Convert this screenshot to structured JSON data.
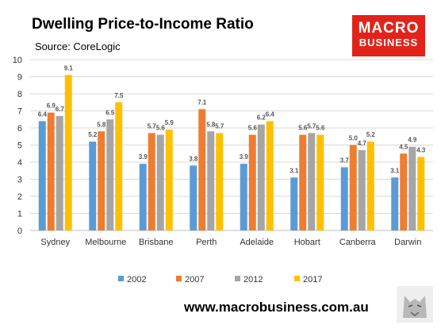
{
  "header": {
    "title": "Dwelling Price-to-Income Ratio",
    "source": "Source: CoreLogic"
  },
  "logo": {
    "line1": "MACRO",
    "line2": "BUSINESS"
  },
  "footer": {
    "website": "www.macrobusiness.com.au"
  },
  "colors": {
    "2002": "#5b9bd5",
    "2007": "#ed7d31",
    "2012": "#a5a5a5",
    "2017": "#ffc000",
    "logo_bg": "#e2231a",
    "gridline": "#d9d9d9"
  },
  "chart_data": {
    "type": "bar",
    "title": "Dwelling Price-to-Income Ratio",
    "categories": [
      "Sydney",
      "Melbourne",
      "Brisbane",
      "Perth",
      "Adelaide",
      "Hobart",
      "Canberra",
      "Darwin"
    ],
    "series": [
      {
        "name": "2002",
        "values": [
          6.4,
          5.2,
          3.9,
          3.8,
          3.9,
          3.1,
          3.7,
          3.1
        ]
      },
      {
        "name": "2007",
        "values": [
          6.9,
          5.8,
          5.7,
          7.1,
          5.6,
          5.6,
          5.0,
          4.5
        ]
      },
      {
        "name": "2012",
        "values": [
          6.7,
          6.5,
          5.6,
          5.8,
          6.2,
          5.7,
          4.7,
          4.9
        ]
      },
      {
        "name": "2017",
        "values": [
          9.1,
          7.5,
          5.9,
          5.7,
          6.4,
          5.6,
          5.2,
          4.3
        ]
      }
    ],
    "yticks": [
      0,
      1,
      2,
      3,
      4,
      5,
      6,
      7,
      8,
      9,
      10
    ],
    "ylim": [
      0,
      10
    ],
    "grid": true,
    "legend": "bottom",
    "data_labels": true
  }
}
